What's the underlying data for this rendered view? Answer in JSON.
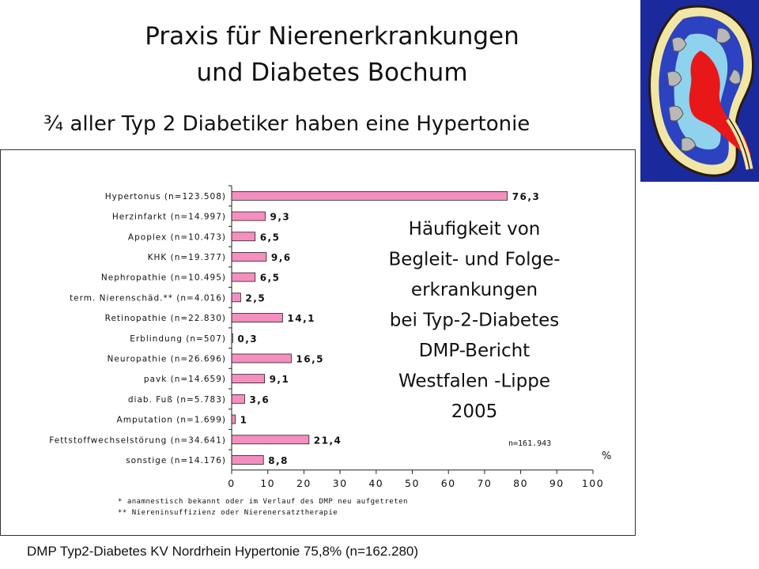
{
  "header": {
    "title_line1": "Praxis für Nierenerkrankungen",
    "title_line2": "und Diabetes Bochum",
    "subtitle": "¾ aller Typ 2 Diabetiker haben eine Hypertonie"
  },
  "chart_data": {
    "type": "bar",
    "orientation": "horizontal",
    "categories": [
      "Hypertonus (n=123.508)",
      "Herzinfarkt (n=14.997)",
      "Apoplex (n=10.473)",
      "KHK (n=19.377)",
      "Nephropathie (n=10.495)",
      "term. Nierenschäd.** (n=4.016)",
      "Retinopathie (n=22.830)",
      "Erblindung (n=507)",
      "Neuropathie (n=26.696)",
      "pavk (n=14.659)",
      "diab. Fuß (n=5.783)",
      "Amputation (n=1.699)",
      "Fettstoffwechselstörung (n=34.641)",
      "sonstige (n=14.176)"
    ],
    "values": [
      76.3,
      9.3,
      6.5,
      9.6,
      6.5,
      2.5,
      14.1,
      0.3,
      16.5,
      9.1,
      3.6,
      1,
      21.4,
      8.8
    ],
    "value_labels": [
      "76,3",
      "9,3",
      "6,5",
      "9,6",
      "6,5",
      "2,5",
      "14,1",
      "0,3",
      "16,5",
      "9,1",
      "3,6",
      "1",
      "21,4",
      "8,8"
    ],
    "xlim": [
      0,
      100
    ],
    "xticks": [
      "0",
      "10",
      "20",
      "30",
      "40",
      "50",
      "60",
      "70",
      "80",
      "90",
      "100"
    ],
    "unit_label": "%",
    "n_total": "n=161.943",
    "bar_color": "#f48fbf",
    "annotation_lines": [
      "Häufigkeit von",
      "Begleit- und Folge-",
      "erkrankungen",
      "bei Typ-2-Diabetes",
      "DMP-Bericht",
      "Westfalen -Lippe",
      "2005"
    ],
    "footnotes": [
      "*  anamnestisch bekannt oder im Verlauf des DMP neu aufgetreten",
      "** Niereninsuffizienz oder Nierenersatztherapie"
    ],
    "grid": false
  },
  "footer": {
    "text": "DMP Typ2-Diabetes KV Nordrhein Hypertonie 75,8% (n=162.280)"
  },
  "image": {
    "icon": "kidney-cross-section-icon"
  }
}
